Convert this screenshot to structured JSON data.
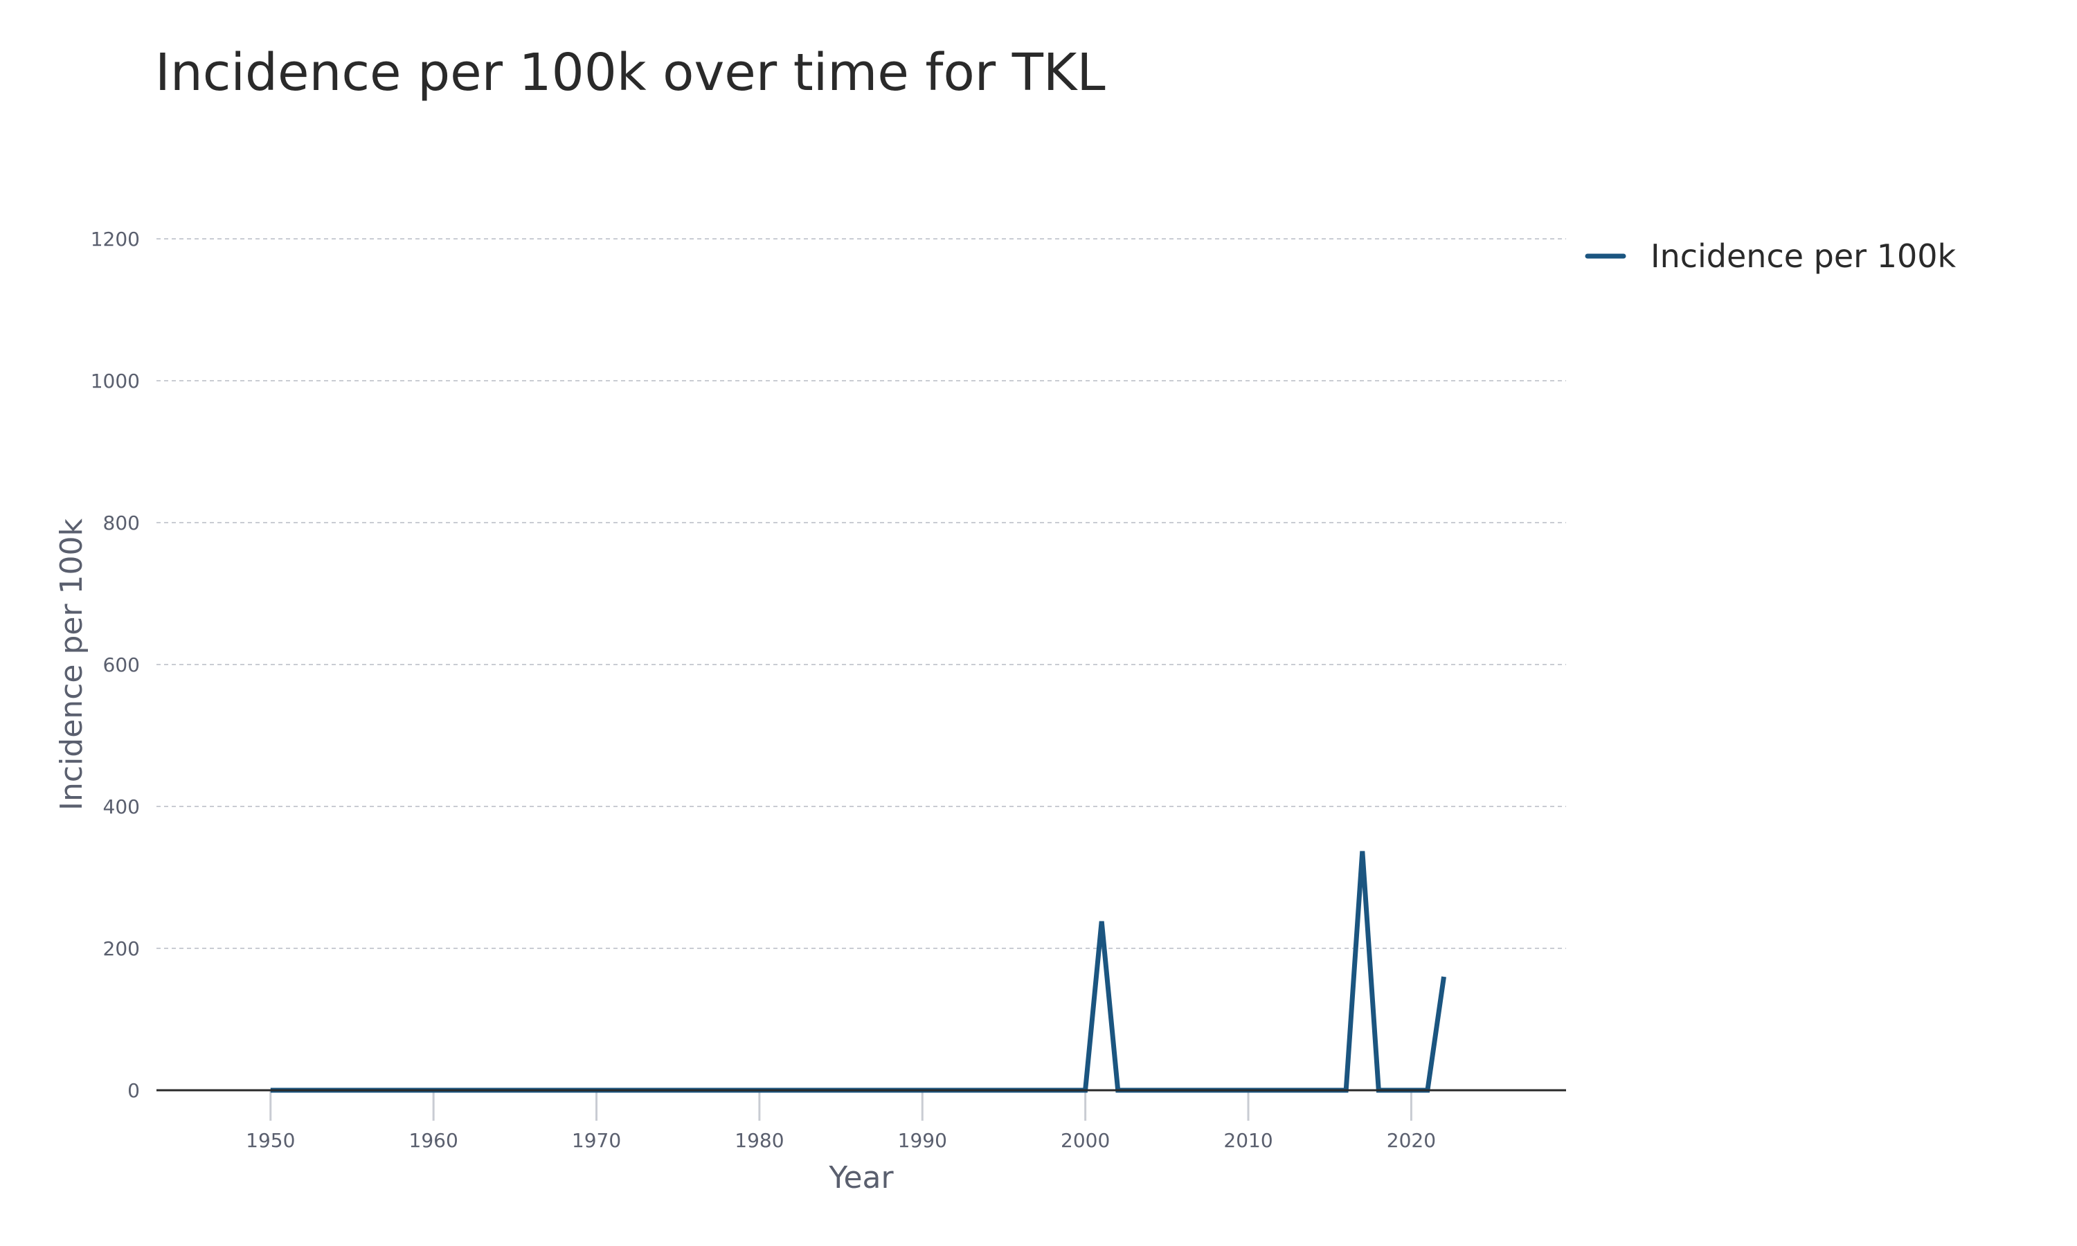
{
  "chart_data": {
    "type": "line",
    "title": "Incidence per 100k over time for TKL",
    "xlabel": "Year",
    "ylabel": "Incidence per 100k",
    "xlim": [
      1943,
      2029.5
    ],
    "ylim": [
      0,
      1200
    ],
    "x_ticks": [
      1950,
      1960,
      1970,
      1980,
      1990,
      2000,
      2010,
      2020
    ],
    "y_ticks": [
      0,
      200,
      400,
      600,
      800,
      1000,
      1200
    ],
    "grid": true,
    "legend_position": "top-right",
    "series": [
      {
        "name": "Incidence per 100k",
        "color": "#1b5580",
        "x": [
          1950,
          1951,
          1952,
          1953,
          1954,
          1955,
          1956,
          1957,
          1958,
          1959,
          1960,
          1961,
          1962,
          1963,
          1964,
          1965,
          1966,
          1967,
          1968,
          1969,
          1970,
          1971,
          1972,
          1973,
          1974,
          1975,
          1976,
          1977,
          1978,
          1979,
          1980,
          1981,
          1982,
          1983,
          1984,
          1985,
          1986,
          1987,
          1988,
          1989,
          1990,
          1991,
          1992,
          1993,
          1994,
          1995,
          1996,
          1997,
          1998,
          1999,
          2000,
          2001,
          2002,
          2003,
          2004,
          2005,
          2006,
          2007,
          2008,
          2009,
          2010,
          2011,
          2012,
          2013,
          2014,
          2015,
          2016,
          2017,
          2018,
          2019,
          2020,
          2021,
          2022
        ],
        "y": [
          0,
          0,
          0,
          0,
          0,
          0,
          0,
          0,
          0,
          0,
          0,
          0,
          0,
          0,
          0,
          0,
          0,
          0,
          0,
          0,
          0,
          0,
          0,
          0,
          0,
          0,
          0,
          0,
          0,
          0,
          0,
          0,
          0,
          0,
          0,
          0,
          0,
          0,
          0,
          0,
          0,
          0,
          0,
          0,
          0,
          0,
          0,
          0,
          0,
          0,
          0,
          238,
          0,
          0,
          0,
          0,
          0,
          0,
          0,
          0,
          0,
          0,
          0,
          0,
          0,
          0,
          0,
          337,
          0,
          0,
          0,
          0,
          160
        ]
      }
    ]
  }
}
